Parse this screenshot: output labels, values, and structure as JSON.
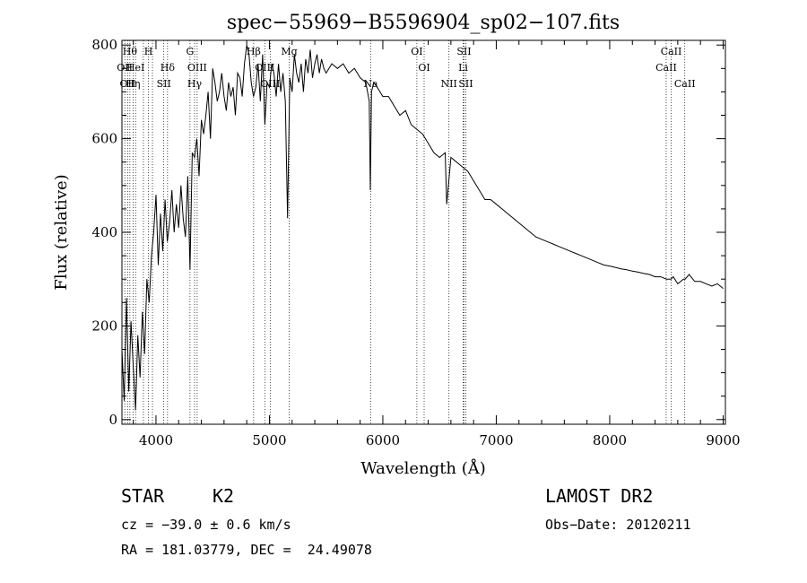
{
  "chart_data": {
    "type": "line",
    "title": "spec−55969−B5596904_sp02−107.fits",
    "xlabel": "Wavelength (Å)",
    "ylabel": "Flux (relative)",
    "xlim": [
      3700,
      9020
    ],
    "ylim": [
      -10,
      810
    ],
    "xticks": [
      4000,
      5000,
      6000,
      7000,
      8000,
      9000
    ],
    "yticks": [
      0,
      200,
      400,
      600,
      800
    ],
    "grid": false,
    "series": [
      {
        "x": [
          3700,
          3720,
          3740,
          3760,
          3780,
          3800,
          3820,
          3840,
          3860,
          3880,
          3900,
          3920,
          3940,
          3960,
          3980,
          4000,
          4020,
          4040,
          4060,
          4080,
          4100,
          4120,
          4140,
          4160,
          4180,
          4200,
          4220,
          4240,
          4260,
          4280,
          4300,
          4320,
          4340,
          4360,
          4380,
          4400,
          4420,
          4440,
          4460,
          4480,
          4500,
          4520,
          4540,
          4560,
          4580,
          4600,
          4620,
          4640,
          4660,
          4680,
          4700,
          4720,
          4740,
          4760,
          4780,
          4800,
          4820,
          4840,
          4860,
          4880,
          4900,
          4920,
          4940,
          4960,
          4980,
          5000,
          5020,
          5040,
          5060,
          5080,
          5100,
          5120,
          5140,
          5160,
          5180,
          5200,
          5220,
          5240,
          5260,
          5280,
          5300,
          5320,
          5340,
          5360,
          5380,
          5400,
          5420,
          5440,
          5460,
          5480,
          5500,
          5550,
          5600,
          5650,
          5700,
          5750,
          5800,
          5850,
          5880,
          5890,
          5900,
          5920,
          5950,
          6000,
          6050,
          6100,
          6150,
          6200,
          6250,
          6300,
          6350,
          6400,
          6450,
          6500,
          6550,
          6563,
          6600,
          6650,
          6700,
          6750,
          6800,
          6850,
          6900,
          6950,
          7000,
          7050,
          7100,
          7150,
          7200,
          7250,
          7300,
          7350,
          7400,
          7450,
          7500,
          7550,
          7600,
          7650,
          7700,
          7750,
          7800,
          7850,
          7900,
          7950,
          8000,
          8050,
          8100,
          8150,
          8200,
          8250,
          8300,
          8350,
          8400,
          8450,
          8500,
          8540,
          8560,
          8600,
          8650,
          8665,
          8700,
          8750,
          8800,
          8850,
          8900,
          8950,
          9000
        ],
        "y": [
          150,
          40,
          260,
          60,
          210,
          110,
          20,
          180,
          90,
          230,
          140,
          300,
          250,
          350,
          400,
          480,
          330,
          440,
          360,
          470,
          380,
          420,
          490,
          400,
          460,
          410,
          500,
          430,
          390,
          520,
          320,
          570,
          560,
          600,
          520,
          640,
          610,
          650,
          700,
          600,
          750,
          720,
          680,
          700,
          740,
          690,
          660,
          720,
          690,
          710,
          650,
          740,
          730,
          690,
          760,
          800,
          780,
          720,
          690,
          710,
          760,
          680,
          780,
          630,
          720,
          710,
          760,
          740,
          690,
          760,
          700,
          740,
          680,
          430,
          730,
          700,
          780,
          740,
          720,
          760,
          700,
          770,
          740,
          790,
          730,
          760,
          780,
          740,
          770,
          750,
          740,
          760,
          750,
          760,
          740,
          750,
          730,
          720,
          680,
          490,
          700,
          720,
          710,
          690,
          690,
          670,
          650,
          660,
          630,
          620,
          610,
          590,
          570,
          560,
          570,
          460,
          560,
          550,
          540,
          530,
          510,
          490,
          470,
          470,
          460,
          450,
          440,
          430,
          420,
          410,
          400,
          390,
          385,
          380,
          375,
          370,
          365,
          360,
          355,
          350,
          345,
          340,
          335,
          330,
          328,
          325,
          322,
          320,
          317,
          315,
          312,
          310,
          305,
          305,
          300,
          300,
          305,
          290,
          300,
          300,
          310,
          295,
          295,
          290,
          285,
          290,
          280
        ]
      }
    ],
    "line_markers": [
      {
        "wave": 3725,
        "label": "OII",
        "row": 1
      },
      {
        "wave": 3750,
        "label": "OII",
        "row": 2
      },
      {
        "wave": 3770,
        "label": "Hθ",
        "row": 0
      },
      {
        "wave": 3798,
        "label": "Hη",
        "row": 2
      },
      {
        "wave": 3820,
        "label": "HeI",
        "row": 1
      },
      {
        "wave": 3889,
        "label": "",
        "row": 0
      },
      {
        "wave": 3934,
        "label": "H",
        "row": 0
      },
      {
        "wave": 3969,
        "label": "",
        "row": 1
      },
      {
        "wave": 4069,
        "label": "SII",
        "row": 2
      },
      {
        "wave": 4102,
        "label": "Hδ",
        "row": 1
      },
      {
        "wave": 4300,
        "label": "G",
        "row": 0
      },
      {
        "wave": 4340,
        "label": "Hγ",
        "row": 2
      },
      {
        "wave": 4363,
        "label": "OIII",
        "row": 1
      },
      {
        "wave": 4861,
        "label": "Hβ",
        "row": 0
      },
      {
        "wave": 4959,
        "label": "OIII",
        "row": 1
      },
      {
        "wave": 5007,
        "label": "OIII",
        "row": 2
      },
      {
        "wave": 5175,
        "label": "Mg",
        "row": 0
      },
      {
        "wave": 5893,
        "label": "Na",
        "row": 2
      },
      {
        "wave": 6300,
        "label": "OI",
        "row": 0
      },
      {
        "wave": 6364,
        "label": "OI",
        "row": 1
      },
      {
        "wave": 6583,
        "label": "NII",
        "row": 2
      },
      {
        "wave": 6708,
        "label": "Li",
        "row": 1
      },
      {
        "wave": 6716,
        "label": "SII",
        "row": 0
      },
      {
        "wave": 6731,
        "label": "SII",
        "row": 2
      },
      {
        "wave": 8498,
        "label": "CaII",
        "row": 1
      },
      {
        "wave": 8542,
        "label": "CaII",
        "row": 0
      },
      {
        "wave": 8662,
        "label": "CaII",
        "row": 2
      }
    ]
  },
  "info": {
    "object_class": "STAR",
    "subclass": "K2",
    "survey": "LAMOST DR2",
    "cz": "cz = −39.0 ± 0.6 km/s",
    "obs_date": "Obs−Date: 20120211",
    "coords": "RA = 181.03779, DEC =  24.49078"
  }
}
